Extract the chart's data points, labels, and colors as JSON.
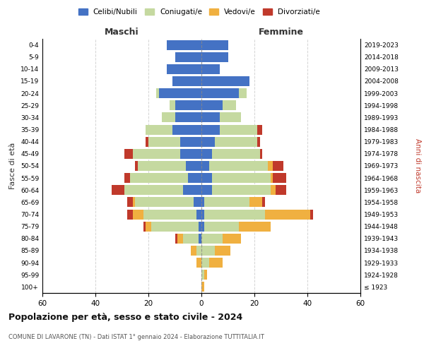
{
  "age_groups": [
    "100+",
    "95-99",
    "90-94",
    "85-89",
    "80-84",
    "75-79",
    "70-74",
    "65-69",
    "60-64",
    "55-59",
    "50-54",
    "45-49",
    "40-44",
    "35-39",
    "30-34",
    "25-29",
    "20-24",
    "15-19",
    "10-14",
    "5-9",
    "0-4"
  ],
  "birth_years": [
    "≤ 1923",
    "1924-1928",
    "1929-1933",
    "1934-1938",
    "1939-1943",
    "1944-1948",
    "1949-1953",
    "1954-1958",
    "1959-1963",
    "1964-1968",
    "1969-1973",
    "1974-1978",
    "1979-1983",
    "1984-1988",
    "1989-1993",
    "1994-1998",
    "1999-2003",
    "2004-2008",
    "2009-2013",
    "2014-2018",
    "2019-2023"
  ],
  "colors": {
    "celibi": "#4472c4",
    "coniugati": "#c5d9a0",
    "vedovi": "#f0b040",
    "divorziati": "#c0392b"
  },
  "maschi": {
    "celibi": [
      0,
      0,
      0,
      0,
      1,
      1,
      2,
      3,
      7,
      5,
      6,
      8,
      8,
      11,
      10,
      10,
      16,
      11,
      13,
      10,
      13
    ],
    "coniugati": [
      0,
      0,
      0,
      2,
      6,
      18,
      20,
      22,
      22,
      22,
      18,
      18,
      12,
      10,
      5,
      2,
      1,
      0,
      0,
      0,
      0
    ],
    "vedovi": [
      0,
      0,
      2,
      2,
      2,
      2,
      4,
      1,
      0,
      0,
      0,
      0,
      0,
      0,
      0,
      0,
      0,
      0,
      0,
      0,
      0
    ],
    "divorziati": [
      0,
      0,
      0,
      0,
      1,
      1,
      2,
      2,
      5,
      2,
      1,
      3,
      1,
      0,
      0,
      0,
      0,
      0,
      0,
      0,
      0
    ]
  },
  "femmine": {
    "celibi": [
      0,
      0,
      0,
      0,
      0,
      1,
      1,
      1,
      4,
      4,
      3,
      4,
      5,
      7,
      7,
      8,
      14,
      18,
      7,
      10,
      10
    ],
    "coniugati": [
      0,
      1,
      3,
      5,
      8,
      13,
      23,
      17,
      22,
      22,
      22,
      18,
      16,
      14,
      8,
      5,
      3,
      0,
      0,
      0,
      0
    ],
    "vedovi": [
      1,
      1,
      5,
      6,
      7,
      12,
      17,
      5,
      2,
      1,
      2,
      0,
      0,
      0,
      0,
      0,
      0,
      0,
      0,
      0,
      0
    ],
    "divorziati": [
      0,
      0,
      0,
      0,
      0,
      0,
      1,
      1,
      4,
      5,
      4,
      1,
      1,
      2,
      0,
      0,
      0,
      0,
      0,
      0,
      0
    ]
  },
  "xlim": 60,
  "title": "Popolazione per età, sesso e stato civile - 2024",
  "subtitle": "COMUNE DI LAVARONE (TN) - Dati ISTAT 1° gennaio 2024 - Elaborazione TUTTITALIA.IT",
  "ylabel_left": "Fasce di età",
  "ylabel_right": "Anni di nascita",
  "xlabel_maschi": "Maschi",
  "xlabel_femmine": "Femmine",
  "legend_labels": [
    "Celibi/Nubili",
    "Coniugati/e",
    "Vedovi/e",
    "Divorziati/e"
  ],
  "background_color": "#ffffff"
}
